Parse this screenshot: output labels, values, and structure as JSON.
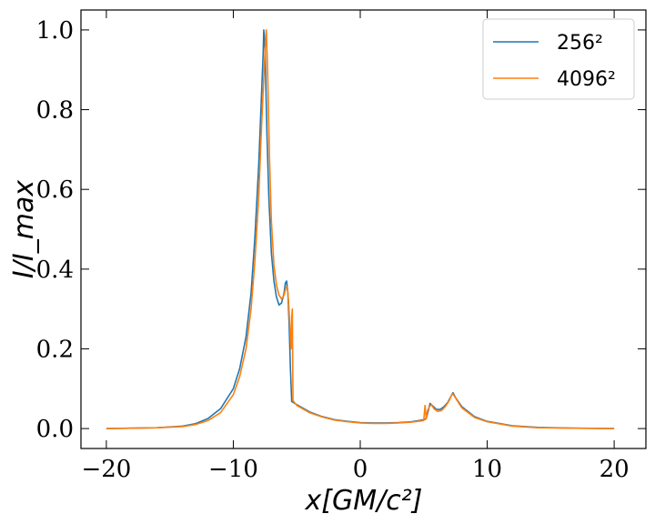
{
  "chart_data": {
    "type": "line",
    "xlabel": "x[GM/c²]",
    "ylabel": "I/I_max",
    "xlim": [
      -22,
      22.5
    ],
    "ylim": [
      -0.05,
      1.05
    ],
    "x_ticks": [
      "−20",
      "−10",
      "0",
      "10",
      "20"
    ],
    "x_tick_values": [
      -20,
      -10,
      0,
      10,
      20
    ],
    "y_ticks": [
      "0.0",
      "0.2",
      "0.4",
      "0.6",
      "0.8",
      "1.0"
    ],
    "y_tick_values": [
      0.0,
      0.2,
      0.4,
      0.6,
      0.8,
      1.0
    ],
    "legend_position": "top-right",
    "series": [
      {
        "name": "256²",
        "color": "#1f77b4",
        "points": [
          [
            -20,
            0.0
          ],
          [
            -16,
            0.002
          ],
          [
            -14,
            0.006
          ],
          [
            -13,
            0.012
          ],
          [
            -12,
            0.025
          ],
          [
            -11,
            0.05
          ],
          [
            -10,
            0.1
          ],
          [
            -9.5,
            0.15
          ],
          [
            -9,
            0.23
          ],
          [
            -8.6,
            0.34
          ],
          [
            -8.3,
            0.48
          ],
          [
            -8.0,
            0.66
          ],
          [
            -7.8,
            0.82
          ],
          [
            -7.65,
            0.94
          ],
          [
            -7.6,
            1.0
          ],
          [
            -7.5,
            0.95
          ],
          [
            -7.35,
            0.74
          ],
          [
            -7.2,
            0.58
          ],
          [
            -7.0,
            0.44
          ],
          [
            -6.8,
            0.37
          ],
          [
            -6.6,
            0.33
          ],
          [
            -6.4,
            0.31
          ],
          [
            -6.2,
            0.315
          ],
          [
            -6.0,
            0.34
          ],
          [
            -5.9,
            0.365
          ],
          [
            -5.8,
            0.37
          ],
          [
            -5.7,
            0.34
          ],
          [
            -5.6,
            0.26
          ],
          [
            -5.5,
            0.15
          ],
          [
            -5.4,
            0.068
          ],
          [
            -5.0,
            0.06
          ],
          [
            -4.0,
            0.042
          ],
          [
            -3.0,
            0.03
          ],
          [
            -2.0,
            0.022
          ],
          [
            -1.0,
            0.018
          ],
          [
            0.0,
            0.015
          ],
          [
            1.0,
            0.014
          ],
          [
            2.0,
            0.014
          ],
          [
            3.0,
            0.015
          ],
          [
            4.0,
            0.017
          ],
          [
            5.0,
            0.022
          ],
          [
            5.2,
            0.025
          ],
          [
            5.4,
            0.05
          ],
          [
            5.5,
            0.063
          ],
          [
            5.7,
            0.057
          ],
          [
            6.0,
            0.048
          ],
          [
            6.3,
            0.048
          ],
          [
            6.6,
            0.055
          ],
          [
            6.9,
            0.066
          ],
          [
            7.1,
            0.078
          ],
          [
            7.3,
            0.09
          ],
          [
            7.5,
            0.078
          ],
          [
            8.0,
            0.055
          ],
          [
            9.0,
            0.03
          ],
          [
            10.0,
            0.018
          ],
          [
            12.0,
            0.007
          ],
          [
            14.0,
            0.003
          ],
          [
            17.0,
            0.001
          ],
          [
            20.0,
            0.0
          ]
        ]
      },
      {
        "name": "4096²",
        "color": "#ff7f0e",
        "points": [
          [
            -20,
            0.0
          ],
          [
            -16,
            0.002
          ],
          [
            -14,
            0.005
          ],
          [
            -13,
            0.01
          ],
          [
            -12,
            0.02
          ],
          [
            -11,
            0.04
          ],
          [
            -10,
            0.085
          ],
          [
            -9.5,
            0.13
          ],
          [
            -9,
            0.2
          ],
          [
            -8.6,
            0.3
          ],
          [
            -8.3,
            0.42
          ],
          [
            -8.0,
            0.58
          ],
          [
            -7.8,
            0.74
          ],
          [
            -7.6,
            0.88
          ],
          [
            -7.45,
            0.98
          ],
          [
            -7.4,
            1.0
          ],
          [
            -7.3,
            0.9
          ],
          [
            -7.15,
            0.68
          ],
          [
            -7.0,
            0.52
          ],
          [
            -6.8,
            0.41
          ],
          [
            -6.6,
            0.36
          ],
          [
            -6.4,
            0.335
          ],
          [
            -6.2,
            0.325
          ],
          [
            -6.0,
            0.335
          ],
          [
            -5.85,
            0.355
          ],
          [
            -5.75,
            0.355
          ],
          [
            -5.65,
            0.32
          ],
          [
            -5.55,
            0.26
          ],
          [
            -5.45,
            0.2
          ],
          [
            -5.4,
            0.28
          ],
          [
            -5.35,
            0.3
          ],
          [
            -5.3,
            0.07
          ],
          [
            -5.0,
            0.058
          ],
          [
            -4.0,
            0.04
          ],
          [
            -3.0,
            0.029
          ],
          [
            -2.0,
            0.021
          ],
          [
            -1.0,
            0.017
          ],
          [
            0.0,
            0.014
          ],
          [
            1.0,
            0.013
          ],
          [
            2.0,
            0.013
          ],
          [
            3.0,
            0.014
          ],
          [
            4.0,
            0.016
          ],
          [
            5.0,
            0.02
          ],
          [
            5.1,
            0.058
          ],
          [
            5.2,
            0.025
          ],
          [
            5.3,
            0.045
          ],
          [
            5.45,
            0.055
          ],
          [
            5.6,
            0.06
          ],
          [
            5.8,
            0.05
          ],
          [
            6.1,
            0.043
          ],
          [
            6.4,
            0.045
          ],
          [
            6.7,
            0.055
          ],
          [
            7.0,
            0.07
          ],
          [
            7.25,
            0.088
          ],
          [
            7.4,
            0.082
          ],
          [
            7.6,
            0.072
          ],
          [
            8.0,
            0.052
          ],
          [
            9.0,
            0.028
          ],
          [
            10.0,
            0.017
          ],
          [
            12.0,
            0.006
          ],
          [
            14.0,
            0.002
          ],
          [
            17.0,
            0.001
          ],
          [
            20.0,
            0.0
          ]
        ]
      }
    ]
  }
}
